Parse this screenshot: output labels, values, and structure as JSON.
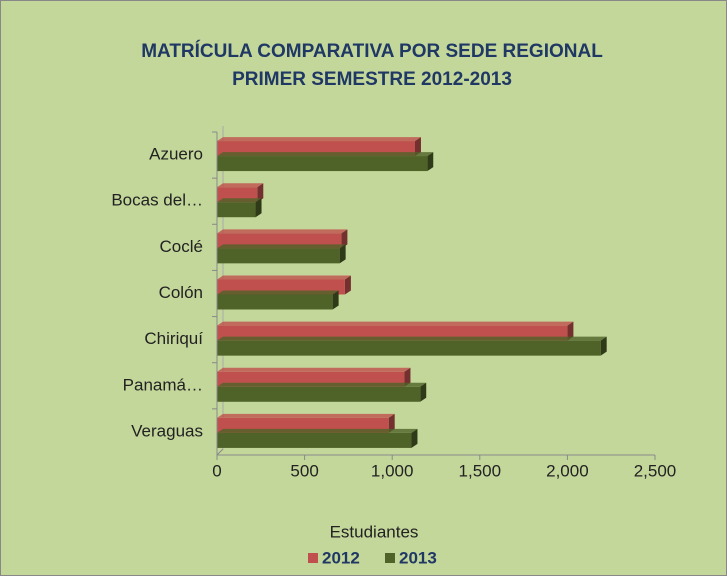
{
  "chart_data": {
    "type": "bar",
    "orientation": "horizontal",
    "title": "MATRÍCULA COMPARATIVA  POR SEDE REGIONAL",
    "subtitle": "PRIMER SEMESTRE 2012-2013",
    "x_label": "Estudiantes",
    "categories": [
      "Azuero",
      "Bocas del…",
      "Coclé",
      "Colón",
      "Chiriquí",
      "Panamá…",
      "Veraguas"
    ],
    "series": [
      {
        "name": "2012",
        "color": "#c0504d",
        "values": [
          1130,
          230,
          710,
          730,
          2000,
          1070,
          980
        ]
      },
      {
        "name": "2013",
        "color": "#4f6228",
        "values": [
          1200,
          220,
          700,
          660,
          2190,
          1160,
          1110
        ]
      }
    ],
    "xlim": [
      0,
      2500
    ],
    "xticks": [
      0,
      500,
      {
        "value": 1000,
        "label": "1,000"
      },
      {
        "value": 1500,
        "label": "1,500"
      },
      {
        "value": 2000,
        "label": "2,000"
      },
      {
        "value": 2500,
        "label": "2,500"
      }
    ],
    "legend": "bottom"
  }
}
